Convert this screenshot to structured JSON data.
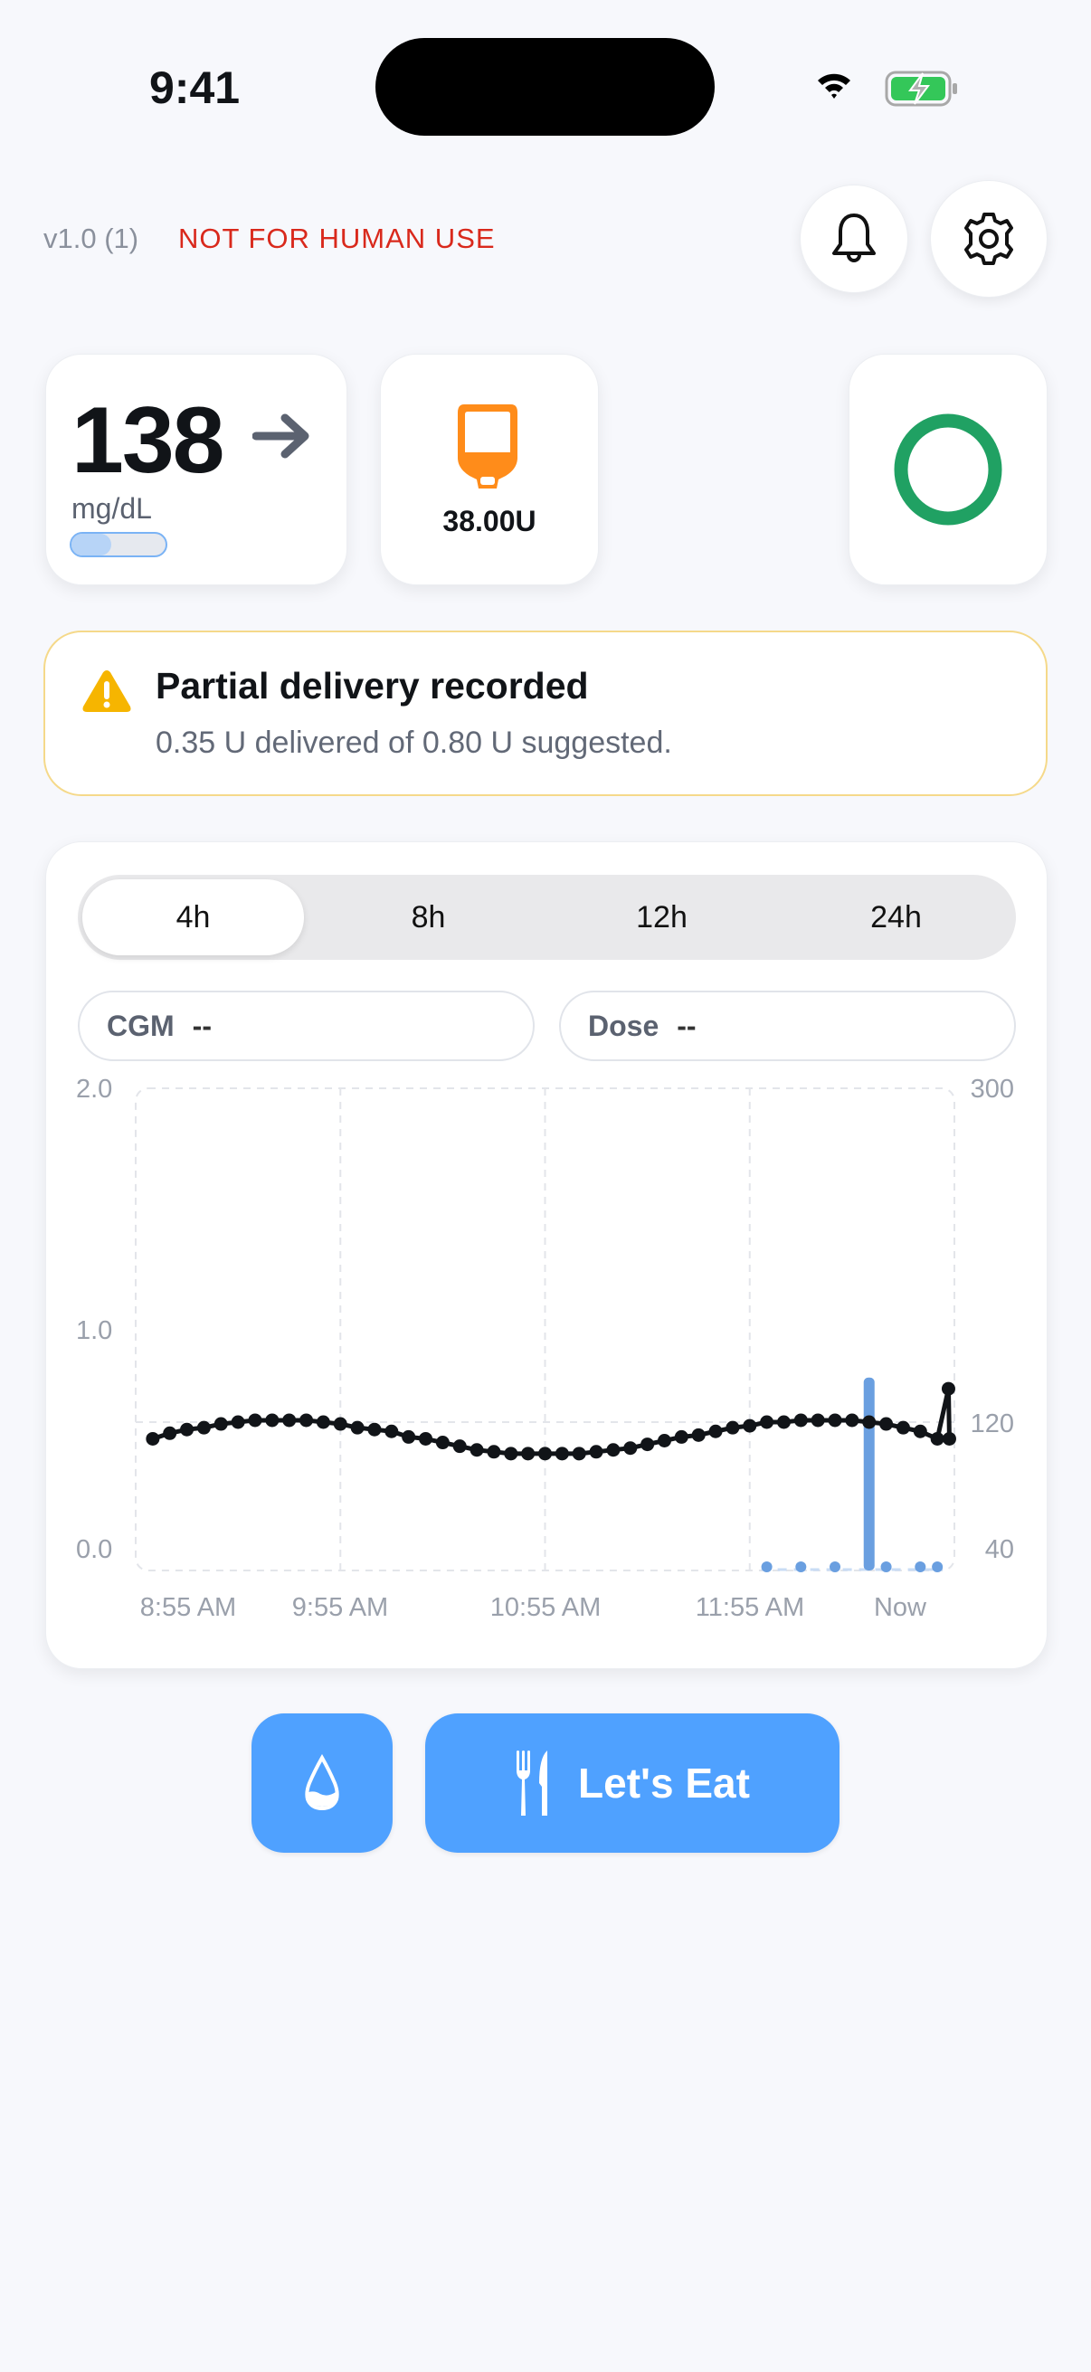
{
  "status_bar": {
    "time": "9:41",
    "wifi_icon": "wifi-icon",
    "battery_icon": "battery-charging-icon",
    "battery_color": "#34c759"
  },
  "header": {
    "version": "v1.0 (1)",
    "warning": "NOT FOR HUMAN USE",
    "warning_color": "#d9291c",
    "bell_icon": "bell-icon",
    "gear_icon": "gear-icon"
  },
  "glucose_card": {
    "value": "138",
    "trend_icon": "arrow-right-icon",
    "unit": "mg/dL",
    "toggle_on": false
  },
  "reservoir_card": {
    "icon": "insulin-reservoir-icon",
    "value": "38.00U",
    "color": "#ff8c1a"
  },
  "loop_status": {
    "icon": "ring-icon",
    "color": "#20a163"
  },
  "alert": {
    "icon": "warning-triangle-icon",
    "title": "Partial delivery recorded",
    "message": "0.35 U delivered of 0.80 U suggested.",
    "border_color": "#f5d98a"
  },
  "chart_panel": {
    "tabs": [
      {
        "label": "4h",
        "selected": true
      },
      {
        "label": "8h",
        "selected": false
      },
      {
        "label": "12h",
        "selected": false
      },
      {
        "label": "24h",
        "selected": false
      }
    ],
    "readouts": [
      {
        "label": "CGM",
        "value": "--"
      },
      {
        "label": "Dose",
        "value": "--"
      }
    ]
  },
  "chart_data": {
    "type": "line",
    "x_tick_labels": [
      "8:55 AM",
      "9:55 AM",
      "10:55 AM",
      "11:55 AM",
      "Now"
    ],
    "x_range": [
      "8:55 AM",
      "12:55 PM"
    ],
    "left_axis": {
      "ticks": [
        "2.0",
        "1.0",
        "0.0"
      ],
      "range": [
        0,
        2
      ]
    },
    "right_axis": {
      "ticks": [
        "300",
        "120",
        "40"
      ],
      "range": [
        40,
        300
      ]
    },
    "grid": true,
    "series": [
      {
        "kind": "cgm",
        "axis": "right",
        "color": "#111418",
        "points": [
          [
            "9:00",
            111
          ],
          [
            "9:05",
            114
          ],
          [
            "9:10",
            116
          ],
          [
            "9:15",
            117
          ],
          [
            "9:20",
            119
          ],
          [
            "9:25",
            120
          ],
          [
            "9:30",
            121
          ],
          [
            "9:35",
            121
          ],
          [
            "9:40",
            121
          ],
          [
            "9:45",
            121
          ],
          [
            "9:50",
            120
          ],
          [
            "9:55",
            119
          ],
          [
            "10:00",
            117
          ],
          [
            "10:05",
            116
          ],
          [
            "10:10",
            115
          ],
          [
            "10:15",
            112
          ],
          [
            "10:20",
            111
          ],
          [
            "10:25",
            109
          ],
          [
            "10:30",
            107
          ],
          [
            "10:35",
            105
          ],
          [
            "10:40",
            104
          ],
          [
            "10:45",
            103
          ],
          [
            "10:50",
            103
          ],
          [
            "10:55",
            103
          ],
          [
            "11:00",
            103
          ],
          [
            "11:05",
            103
          ],
          [
            "11:10",
            104
          ],
          [
            "11:15",
            105
          ],
          [
            "11:20",
            106
          ],
          [
            "11:25",
            108
          ],
          [
            "11:30",
            110
          ],
          [
            "11:35",
            112
          ],
          [
            "11:40",
            113
          ],
          [
            "11:45",
            115
          ],
          [
            "11:50",
            117
          ],
          [
            "11:55",
            118
          ],
          [
            "12:00",
            120
          ],
          [
            "12:05",
            120
          ],
          [
            "12:10",
            121
          ],
          [
            "12:15",
            121
          ],
          [
            "12:20",
            121
          ],
          [
            "12:25",
            121
          ],
          [
            "12:30",
            120
          ],
          [
            "12:35",
            119
          ],
          [
            "12:40",
            117
          ],
          [
            "12:45",
            115
          ],
          [
            "12:50",
            111
          ],
          [
            "12:53",
            138
          ],
          [
            "12:53",
            111
          ]
        ]
      },
      {
        "kind": "dose",
        "axis": "left",
        "color": "#6a9fe0",
        "points": [
          [
            "12:00",
            0
          ],
          [
            "12:10",
            0
          ],
          [
            "12:20",
            0
          ],
          [
            "12:30",
            0.8
          ],
          [
            "12:35",
            0
          ],
          [
            "12:45",
            0
          ],
          [
            "12:50",
            0
          ]
        ]
      }
    ]
  },
  "actions": {
    "drop_icon": "water-drop-icon",
    "eat_icon": "fork-knife-icon",
    "eat_label": "Let's Eat",
    "accent": "#4fa1ff"
  }
}
